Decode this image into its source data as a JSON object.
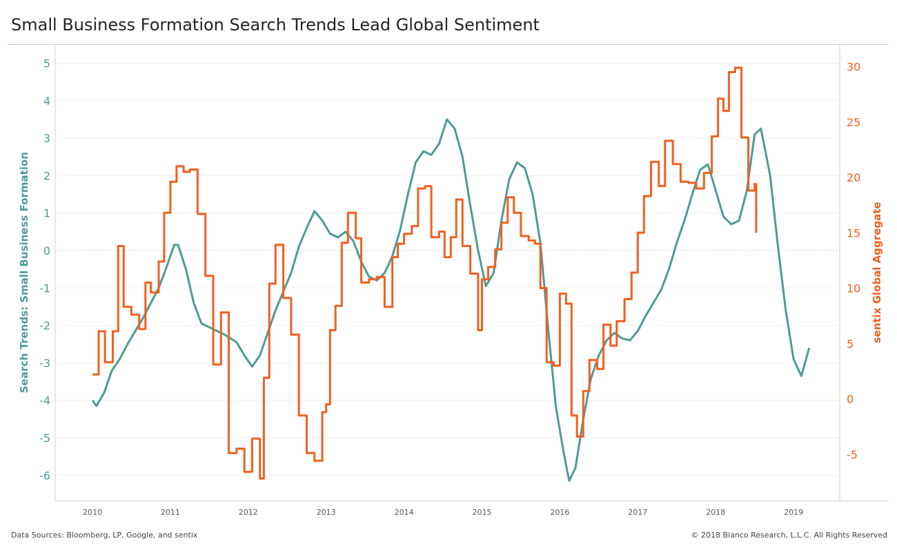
{
  "chart_data": {
    "type": "line",
    "title": "Small Business Formation Search Trends Lead Global Sentiment",
    "x_ticks": [
      "2010",
      "2011",
      "2012",
      "2013",
      "2014",
      "2015",
      "2016",
      "2017",
      "2018",
      "2019"
    ],
    "left_axis": {
      "label": "Search Trends: Small Business Formation",
      "ticks": [
        5,
        4,
        3,
        2,
        1,
        0,
        -1,
        -2,
        -3,
        -4,
        -5,
        -6
      ],
      "range": [
        -6.7,
        5.3
      ]
    },
    "right_axis": {
      "label": "sentix Global Aggregate",
      "ticks": [
        30,
        25,
        20,
        15,
        10,
        5,
        0,
        -5
      ],
      "range": [
        -9,
        32
      ]
    },
    "zero_line": "dotted at left-axis 0",
    "series": [
      {
        "name": "Search Trends: Small Business Formation",
        "axis": "left",
        "color": "#4e9a96",
        "points": [
          [
            2010.0,
            -4.0
          ],
          [
            2010.05,
            -4.15
          ],
          [
            2010.15,
            -3.8
          ],
          [
            2010.25,
            -3.2
          ],
          [
            2010.35,
            -2.9
          ],
          [
            2010.45,
            -2.5
          ],
          [
            2010.55,
            -2.15
          ],
          [
            2010.65,
            -1.8
          ],
          [
            2010.75,
            -1.4
          ],
          [
            2010.85,
            -1.0
          ],
          [
            2010.95,
            -0.45
          ],
          [
            2011.05,
            0.15
          ],
          [
            2011.1,
            0.15
          ],
          [
            2011.2,
            -0.5
          ],
          [
            2011.3,
            -1.4
          ],
          [
            2011.4,
            -1.95
          ],
          [
            2011.55,
            -2.1
          ],
          [
            2011.7,
            -2.25
          ],
          [
            2011.85,
            -2.45
          ],
          [
            2011.95,
            -2.8
          ],
          [
            2012.05,
            -3.1
          ],
          [
            2012.15,
            -2.8
          ],
          [
            2012.25,
            -2.2
          ],
          [
            2012.35,
            -1.6
          ],
          [
            2012.45,
            -1.1
          ],
          [
            2012.55,
            -0.6
          ],
          [
            2012.65,
            0.1
          ],
          [
            2012.75,
            0.6
          ],
          [
            2012.85,
            1.05
          ],
          [
            2012.95,
            0.8
          ],
          [
            2013.05,
            0.45
          ],
          [
            2013.15,
            0.35
          ],
          [
            2013.25,
            0.5
          ],
          [
            2013.35,
            0.25
          ],
          [
            2013.45,
            -0.3
          ],
          [
            2013.55,
            -0.7
          ],
          [
            2013.65,
            -0.8
          ],
          [
            2013.75,
            -0.6
          ],
          [
            2013.85,
            -0.15
          ],
          [
            2013.95,
            0.55
          ],
          [
            2014.05,
            1.5
          ],
          [
            2014.15,
            2.35
          ],
          [
            2014.25,
            2.65
          ],
          [
            2014.35,
            2.55
          ],
          [
            2014.45,
            2.85
          ],
          [
            2014.55,
            3.5
          ],
          [
            2014.65,
            3.25
          ],
          [
            2014.75,
            2.5
          ],
          [
            2014.85,
            1.2
          ],
          [
            2014.95,
            0.0
          ],
          [
            2015.05,
            -0.95
          ],
          [
            2015.15,
            -0.6
          ],
          [
            2015.25,
            0.8
          ],
          [
            2015.35,
            1.9
          ],
          [
            2015.45,
            2.35
          ],
          [
            2015.55,
            2.2
          ],
          [
            2015.65,
            1.5
          ],
          [
            2015.75,
            0.2
          ],
          [
            2015.85,
            -2.1
          ],
          [
            2015.95,
            -4.2
          ],
          [
            2016.05,
            -5.4
          ],
          [
            2016.12,
            -6.15
          ],
          [
            2016.2,
            -5.8
          ],
          [
            2016.3,
            -4.5
          ],
          [
            2016.4,
            -3.4
          ],
          [
            2016.5,
            -2.8
          ],
          [
            2016.6,
            -2.4
          ],
          [
            2016.7,
            -2.2
          ],
          [
            2016.8,
            -2.35
          ],
          [
            2016.9,
            -2.4
          ],
          [
            2017.0,
            -2.15
          ],
          [
            2017.1,
            -1.75
          ],
          [
            2017.2,
            -1.4
          ],
          [
            2017.3,
            -1.05
          ],
          [
            2017.4,
            -0.5
          ],
          [
            2017.5,
            0.2
          ],
          [
            2017.6,
            0.8
          ],
          [
            2017.7,
            1.5
          ],
          [
            2017.8,
            2.15
          ],
          [
            2017.9,
            2.3
          ],
          [
            2018.0,
            1.6
          ],
          [
            2018.1,
            0.9
          ],
          [
            2018.2,
            0.7
          ],
          [
            2018.3,
            0.8
          ],
          [
            2018.4,
            1.6
          ],
          [
            2018.5,
            3.1
          ],
          [
            2018.58,
            3.25
          ],
          [
            2018.7,
            2.0
          ],
          [
            2018.8,
            0.1
          ],
          [
            2018.9,
            -1.6
          ],
          [
            2019.0,
            -2.9
          ],
          [
            2019.1,
            -3.35
          ],
          [
            2019.2,
            -2.6
          ]
        ]
      },
      {
        "name": "sentix Global Aggregate",
        "axis": "right",
        "color": "#f25f1e",
        "points": [
          [
            2010.0,
            2.2
          ],
          [
            2010.08,
            6.1
          ],
          [
            2010.16,
            3.3
          ],
          [
            2010.26,
            6.1
          ],
          [
            2010.33,
            13.8
          ],
          [
            2010.4,
            8.3
          ],
          [
            2010.5,
            7.6
          ],
          [
            2010.6,
            6.3
          ],
          [
            2010.68,
            10.5
          ],
          [
            2010.75,
            9.6
          ],
          [
            2010.85,
            12.4
          ],
          [
            2010.92,
            16.8
          ],
          [
            2011.0,
            19.6
          ],
          [
            2011.08,
            21.0
          ],
          [
            2011.17,
            20.5
          ],
          [
            2011.25,
            20.7
          ],
          [
            2011.35,
            16.7
          ],
          [
            2011.45,
            11.1
          ],
          [
            2011.55,
            3.1
          ],
          [
            2011.65,
            7.8
          ],
          [
            2011.75,
            -4.9
          ],
          [
            2011.85,
            -4.5
          ],
          [
            2011.95,
            -6.6
          ],
          [
            2012.05,
            -3.6
          ],
          [
            2012.15,
            -7.2
          ],
          [
            2012.2,
            1.9
          ],
          [
            2012.27,
            10.4
          ],
          [
            2012.35,
            13.9
          ],
          [
            2012.45,
            9.1
          ],
          [
            2012.55,
            5.8
          ],
          [
            2012.65,
            -1.5
          ],
          [
            2012.75,
            -4.9
          ],
          [
            2012.85,
            -5.6
          ],
          [
            2012.95,
            -1.2
          ],
          [
            2013.0,
            -0.5
          ],
          [
            2013.05,
            6.2
          ],
          [
            2013.12,
            8.4
          ],
          [
            2013.2,
            14.1
          ],
          [
            2013.28,
            16.8
          ],
          [
            2013.38,
            14.5
          ],
          [
            2013.45,
            10.5
          ],
          [
            2013.55,
            10.8
          ],
          [
            2013.65,
            11.0
          ],
          [
            2013.75,
            8.3
          ],
          [
            2013.85,
            12.8
          ],
          [
            2013.92,
            14.0
          ],
          [
            2014.0,
            14.9
          ],
          [
            2014.1,
            15.6
          ],
          [
            2014.18,
            19.0
          ],
          [
            2014.27,
            19.2
          ],
          [
            2014.35,
            14.6
          ],
          [
            2014.45,
            15.1
          ],
          [
            2014.52,
            12.8
          ],
          [
            2014.6,
            14.6
          ],
          [
            2014.67,
            18.0
          ],
          [
            2014.75,
            13.8
          ],
          [
            2014.85,
            11.3
          ],
          [
            2014.95,
            6.2
          ],
          [
            2015.0,
            10.8
          ],
          [
            2015.08,
            11.9
          ],
          [
            2015.17,
            13.5
          ],
          [
            2015.25,
            15.9
          ],
          [
            2015.33,
            18.2
          ],
          [
            2015.41,
            16.8
          ],
          [
            2015.5,
            14.7
          ],
          [
            2015.6,
            14.3
          ],
          [
            2015.68,
            14.0
          ],
          [
            2015.75,
            10.0
          ],
          [
            2015.83,
            3.3
          ],
          [
            2015.92,
            3.0
          ],
          [
            2016.0,
            9.5
          ],
          [
            2016.08,
            8.6
          ],
          [
            2016.15,
            -1.5
          ],
          [
            2016.22,
            -3.4
          ],
          [
            2016.3,
            0.7
          ],
          [
            2016.38,
            3.5
          ],
          [
            2016.48,
            2.7
          ],
          [
            2016.56,
            6.7
          ],
          [
            2016.65,
            4.8
          ],
          [
            2016.73,
            7.0
          ],
          [
            2016.83,
            9.0
          ],
          [
            2016.92,
            11.4
          ],
          [
            2017.0,
            15.0
          ],
          [
            2017.08,
            18.3
          ],
          [
            2017.17,
            21.4
          ],
          [
            2017.27,
            19.2
          ],
          [
            2017.35,
            23.3
          ],
          [
            2017.45,
            21.2
          ],
          [
            2017.55,
            19.6
          ],
          [
            2017.65,
            19.5
          ],
          [
            2017.75,
            19.0
          ],
          [
            2017.85,
            20.4
          ],
          [
            2017.95,
            23.7
          ],
          [
            2018.03,
            27.1
          ],
          [
            2018.1,
            26.0
          ],
          [
            2018.17,
            29.5
          ],
          [
            2018.25,
            29.9
          ],
          [
            2018.33,
            23.6
          ],
          [
            2018.42,
            18.8
          ],
          [
            2018.5,
            19.4
          ],
          [
            2018.52,
            15.0
          ]
        ]
      }
    ],
    "grid": "horizontal light gridlines"
  },
  "footer": {
    "sources": "Data Sources: Bloomberg, LP, Google, and sentix",
    "copyright": "© 2018 Bianco Research, L.L.C. All Rights Reserved"
  },
  "colors": {
    "search": "#4e9a96",
    "sentix": "#f25f1e"
  }
}
